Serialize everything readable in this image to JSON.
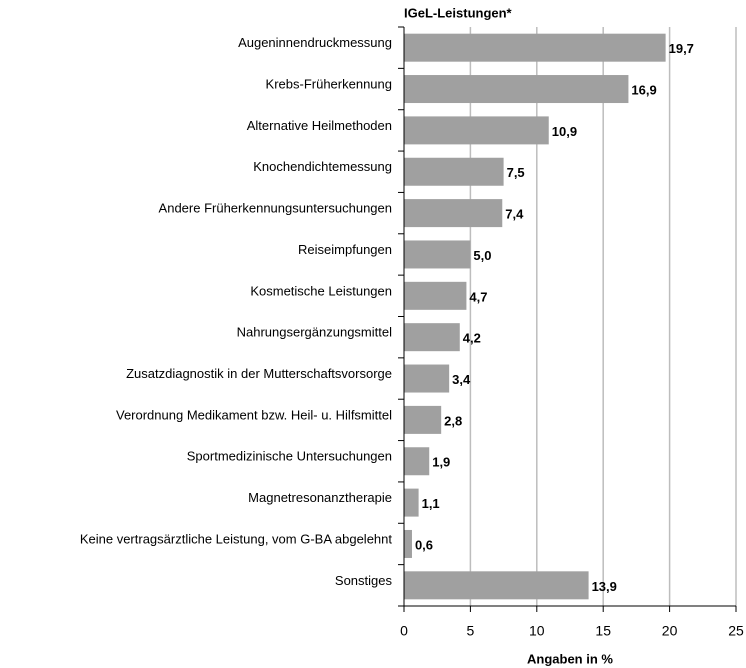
{
  "chart_data": {
    "type": "hbar",
    "title": "IGeL-Leistungen*",
    "x_label": "Angaben in %",
    "categories": [
      "Augeninnendruckmessung",
      "Krebs-Früherkennung",
      "Alternative Heilmethoden",
      "Knochendichtemessung",
      "Andere Früherkennungsuntersuchungen",
      "Reiseimpfungen",
      "Kosmetische Leistungen",
      "Nahrungsergänzungsmittel",
      "Zusatzdiagnostik in der Mutterschaftsvorsorge",
      "Verordnung Medikament bzw. Heil- u. Hilfsmittel",
      "Sportmedizinische Untersuchungen",
      "Magnetresonanztherapie",
      "Keine vertragsärztliche Leistung, vom G-BA abgelehnt",
      "Sonstiges"
    ],
    "values": [
      19.7,
      16.9,
      10.9,
      7.5,
      7.4,
      5.0,
      4.7,
      4.2,
      3.4,
      2.8,
      1.9,
      1.1,
      0.6,
      13.9
    ],
    "value_labels": [
      "19,7",
      "16,9",
      "10,9",
      "7,5",
      "7,4",
      "5,0",
      "4,7",
      "4,2",
      "3,4",
      "2,8",
      "1,9",
      "1,1",
      "0,6",
      "13,9"
    ],
    "color": "#a0a0a0",
    "xlim": [
      0,
      25
    ],
    "xticks": [
      0,
      5,
      10,
      15,
      20,
      25
    ],
    "grid": true
  }
}
